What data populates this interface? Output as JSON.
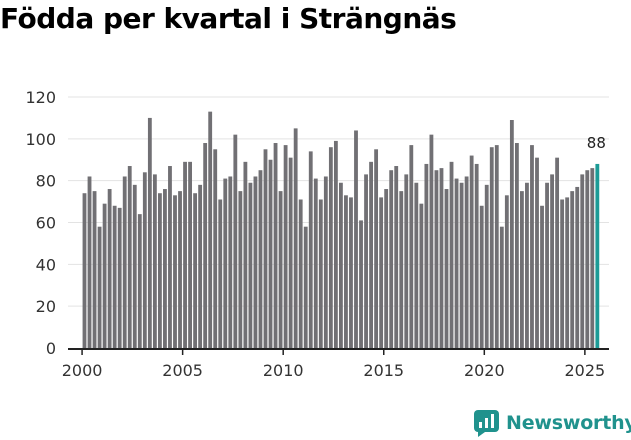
{
  "title": "Födda per kvartal i Strängnäs",
  "brand": {
    "name": "Newsworthy",
    "icon": "newsworthy-logo-icon"
  },
  "colors": {
    "bar": "#717074",
    "highlight": "#1c9b96",
    "brand": "#20928d",
    "axis": "#222222",
    "grid": "#e3e3e3"
  },
  "chart_data": {
    "type": "bar",
    "title": "Födda per kvartal i Strängnäs",
    "xlabel": "",
    "ylabel": "",
    "ylim": [
      0,
      120
    ],
    "yticks": [
      0,
      20,
      40,
      60,
      80,
      100,
      120
    ],
    "xticks": [
      2000,
      2005,
      2010,
      2015,
      2020,
      2025
    ],
    "xlim": [
      1999.3,
      2026.2
    ],
    "grid": true,
    "start_year": 2000,
    "start_quarter": 1,
    "highlight_label": "88",
    "values": [
      74,
      82,
      75,
      58,
      69,
      76,
      68,
      67,
      82,
      87,
      78,
      64,
      84,
      110,
      83,
      74,
      76,
      87,
      73,
      75,
      89,
      89,
      74,
      78,
      98,
      113,
      95,
      71,
      81,
      82,
      102,
      75,
      89,
      79,
      82,
      85,
      95,
      90,
      98,
      75,
      97,
      91,
      105,
      71,
      58,
      94,
      81,
      71,
      82,
      96,
      99,
      79,
      73,
      72,
      104,
      61,
      83,
      89,
      95,
      72,
      76,
      85,
      87,
      75,
      83,
      97,
      79,
      69,
      88,
      102,
      85,
      86,
      76,
      89,
      81,
      79,
      82,
      92,
      88,
      68,
      78,
      96,
      97,
      58,
      73,
      109,
      98,
      75,
      79,
      97,
      91,
      68,
      79,
      83,
      91,
      71,
      72,
      75,
      77,
      83,
      85,
      86,
      88
    ]
  }
}
